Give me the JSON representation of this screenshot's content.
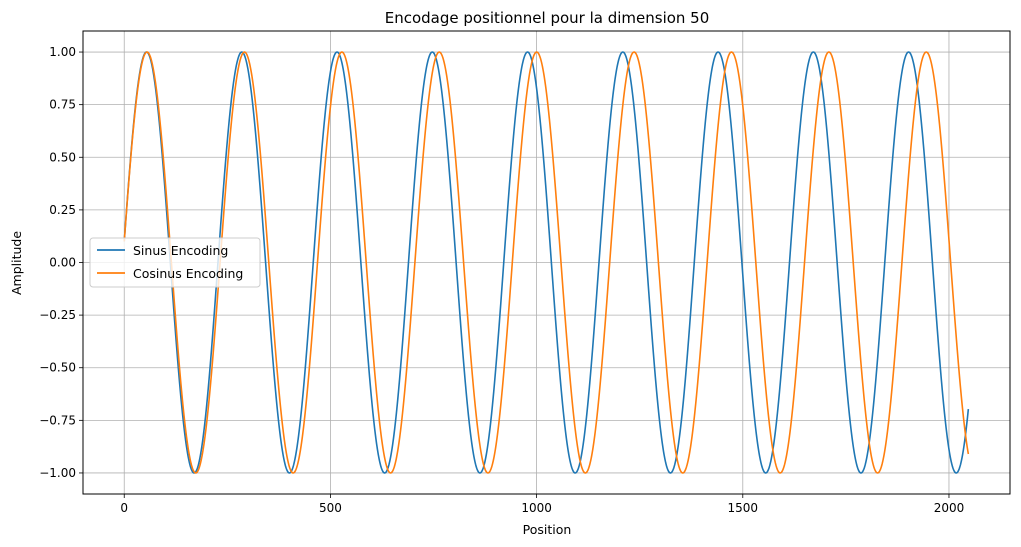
{
  "chart_data": {
    "type": "line",
    "title": "Encodage positionnel pour la dimension 50",
    "xlabel": "Position",
    "ylabel": "Amplitude",
    "xlim": [
      -100,
      2148
    ],
    "ylim": [
      -1.1,
      1.1
    ],
    "x_ticks": [
      0,
      500,
      1000,
      1500,
      2000
    ],
    "y_ticks": [
      -1.0,
      -0.75,
      -0.5,
      -0.25,
      0.0,
      0.25,
      0.5,
      0.75,
      1.0
    ],
    "x_tick_labels": [
      "0",
      "500",
      "1000",
      "1500",
      "2000"
    ],
    "y_tick_labels": [
      "−1.00",
      "−0.75",
      "−0.50",
      "−0.25",
      "0.00",
      "0.25",
      "0.50",
      "0.75",
      "1.00"
    ],
    "grid": true,
    "legend_position": "center-left",
    "series": [
      {
        "name": "Sinus Encoding",
        "color": "#1f77b4",
        "function": "sin",
        "frequency": 0.0272,
        "phase": 0.1,
        "x_start": 0,
        "x_end": 2047
      },
      {
        "name": "Cosinus Encoding",
        "color": "#ff7f0e",
        "function": "sin",
        "frequency": 0.0266,
        "phase": 0.1,
        "x_start": 0,
        "x_end": 2047
      }
    ]
  }
}
